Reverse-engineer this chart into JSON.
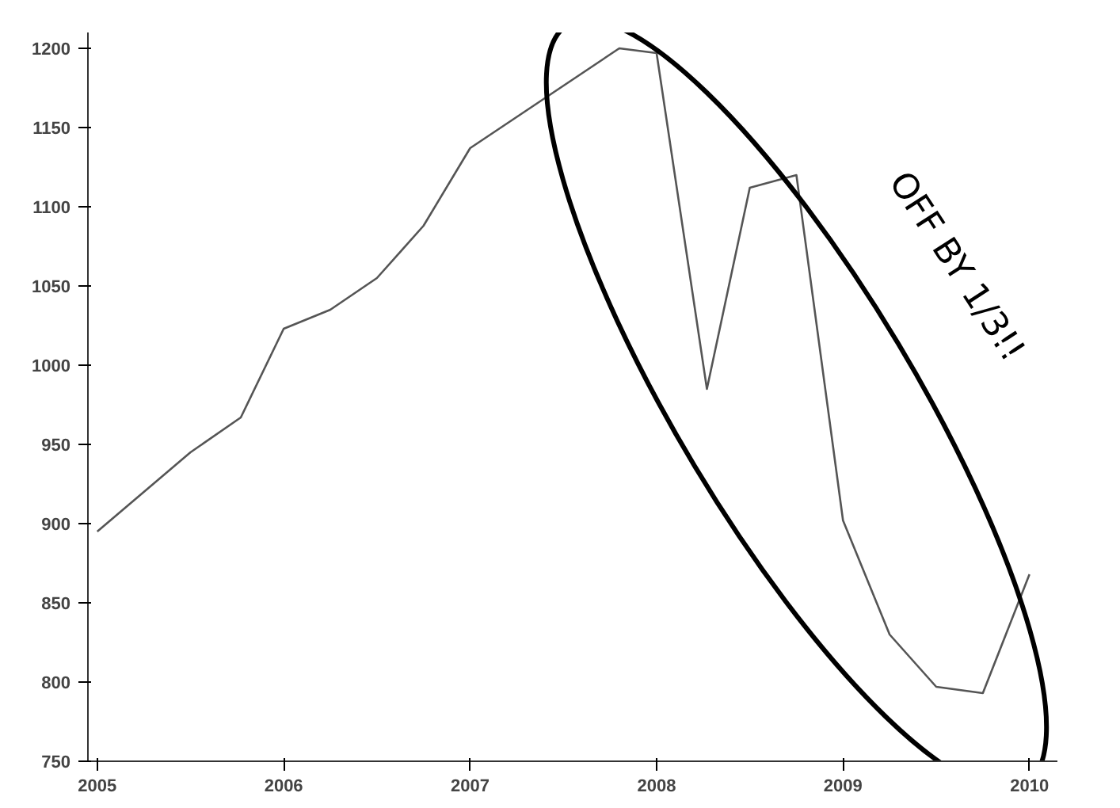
{
  "chart_data": {
    "type": "line",
    "x": [
      2005.0,
      2005.5,
      2005.77,
      2006.0,
      2006.25,
      2006.5,
      2006.75,
      2007.0,
      2007.8,
      2008.0,
      2008.27,
      2008.5,
      2008.75,
      2009.0,
      2009.25,
      2009.5,
      2009.75,
      2010.0
    ],
    "values": [
      895,
      945,
      967,
      1023,
      1035,
      1055,
      1088,
      1137,
      1200,
      1197,
      985,
      1112,
      1120,
      902,
      830,
      797,
      793,
      868
    ],
    "color": "#555555",
    "xlim": [
      2004.95,
      2010.15
    ],
    "ylim": [
      750,
      1210
    ],
    "xticks": [
      2005,
      2006,
      2007,
      2008,
      2009,
      2010
    ],
    "yticks": [
      750,
      800,
      850,
      900,
      950,
      1000,
      1050,
      1100,
      1150,
      1200
    ],
    "grid": false,
    "marker": "none",
    "line_style": "solid",
    "annotations": [
      "OFF BY 1/3!!"
    ]
  }
}
